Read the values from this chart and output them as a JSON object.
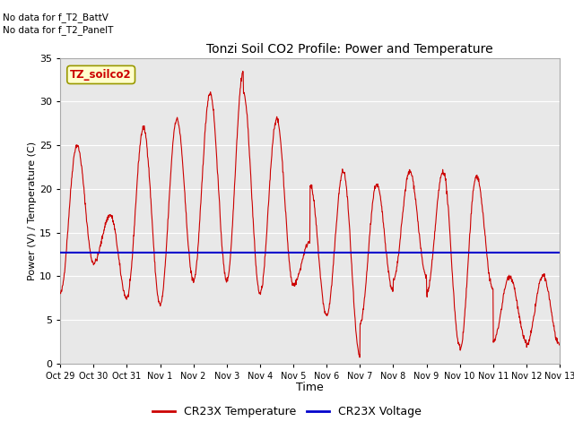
{
  "title": "Tonzi Soil CO2 Profile: Power and Temperature",
  "xlabel": "Time",
  "ylabel": "Power (V) / Temperature (C)",
  "ylim": [
    0,
    35
  ],
  "yticks": [
    0,
    5,
    10,
    15,
    20,
    25,
    30,
    35
  ],
  "annotation_lines": [
    "No data for f_T2_BattV",
    "No data for f_T2_PanelT"
  ],
  "legend_label_box": "TZ_soilco2",
  "legend_temp": "CR23X Temperature",
  "legend_volt": "CR23X Voltage",
  "temp_color": "#cc0000",
  "volt_color": "#0000cc",
  "volt_level": 12.7,
  "background_color": "#ffffff",
  "plot_bg_color": "#e8e8e8",
  "grid_color": "#ffffff",
  "x_tick_labels": [
    "Oct 29",
    "Oct 30",
    "Oct 31",
    "Nov 1",
    "Nov 2",
    "Nov 3",
    "Nov 4",
    "Nov 5",
    "Nov 6",
    "Nov 7",
    "Nov 8",
    "Nov 9",
    "Nov 10",
    "Nov 11",
    "Nov 12",
    "Nov 13"
  ],
  "num_days": 15
}
